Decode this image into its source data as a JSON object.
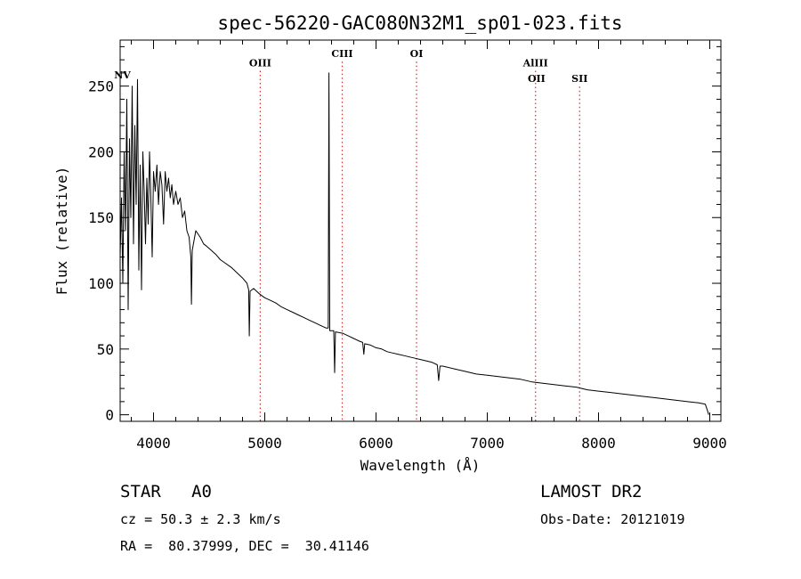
{
  "chart_data": {
    "type": "line",
    "title": "spec-56220-GAC080N32M1_sp01-023.fits",
    "xlabel": "Wavelength (Å)",
    "ylabel": "Flux (relative)",
    "xlim": [
      3700,
      9100
    ],
    "ylim": [
      -5,
      285
    ],
    "x_ticks": [
      4000,
      5000,
      6000,
      7000,
      8000,
      9000
    ],
    "y_ticks": [
      0,
      50,
      100,
      150,
      200,
      250
    ],
    "grid": false,
    "series": [
      {
        "values": [
          [
            3700,
            120
          ],
          [
            3712,
            165
          ],
          [
            3724,
            100
          ],
          [
            3736,
            200
          ],
          [
            3748,
            140
          ],
          [
            3760,
            240
          ],
          [
            3772,
            80
          ],
          [
            3784,
            210
          ],
          [
            3796,
            150
          ],
          [
            3808,
            250
          ],
          [
            3820,
            130
          ],
          [
            3832,
            220
          ],
          [
            3844,
            160
          ],
          [
            3856,
            255
          ],
          [
            3868,
            110
          ],
          [
            3880,
            190
          ],
          [
            3892,
            95
          ],
          [
            3904,
            200
          ],
          [
            3916,
            170
          ],
          [
            3928,
            130
          ],
          [
            3940,
            180
          ],
          [
            3952,
            145
          ],
          [
            3964,
            200
          ],
          [
            3976,
            165
          ],
          [
            3988,
            120
          ],
          [
            4000,
            185
          ],
          [
            4015,
            170
          ],
          [
            4030,
            190
          ],
          [
            4045,
            160
          ],
          [
            4060,
            185
          ],
          [
            4075,
            175
          ],
          [
            4090,
            145
          ],
          [
            4105,
            185
          ],
          [
            4120,
            170
          ],
          [
            4135,
            180
          ],
          [
            4150,
            165
          ],
          [
            4165,
            175
          ],
          [
            4180,
            160
          ],
          [
            4200,
            170
          ],
          [
            4220,
            160
          ],
          [
            4240,
            165
          ],
          [
            4260,
            150
          ],
          [
            4280,
            155
          ],
          [
            4300,
            140
          ],
          [
            4320,
            135
          ],
          [
            4335,
            120
          ],
          [
            4341,
            84
          ],
          [
            4348,
            125
          ],
          [
            4380,
            140
          ],
          [
            4420,
            135
          ],
          [
            4450,
            130
          ],
          [
            4480,
            128
          ],
          [
            4520,
            125
          ],
          [
            4560,
            122
          ],
          [
            4600,
            118
          ],
          [
            4650,
            115
          ],
          [
            4700,
            112
          ],
          [
            4750,
            108
          ],
          [
            4800,
            104
          ],
          [
            4840,
            100
          ],
          [
            4855,
            95
          ],
          [
            4861,
            60
          ],
          [
            4868,
            94
          ],
          [
            4900,
            96
          ],
          [
            4950,
            92
          ],
          [
            5000,
            89
          ],
          [
            5050,
            87
          ],
          [
            5100,
            85
          ],
          [
            5150,
            82
          ],
          [
            5200,
            80
          ],
          [
            5250,
            78
          ],
          [
            5300,
            76
          ],
          [
            5350,
            74
          ],
          [
            5400,
            72
          ],
          [
            5450,
            70
          ],
          [
            5500,
            68
          ],
          [
            5550,
            66
          ],
          [
            5570,
            66
          ],
          [
            5577,
            260
          ],
          [
            5584,
            64
          ],
          [
            5620,
            64
          ],
          [
            5628,
            32
          ],
          [
            5635,
            63
          ],
          [
            5700,
            62
          ],
          [
            5750,
            60
          ],
          [
            5800,
            58
          ],
          [
            5850,
            56
          ],
          [
            5880,
            55
          ],
          [
            5890,
            46
          ],
          [
            5898,
            54
          ],
          [
            5950,
            53
          ],
          [
            6000,
            51
          ],
          [
            6050,
            50
          ],
          [
            6100,
            48
          ],
          [
            6150,
            47
          ],
          [
            6200,
            46
          ],
          [
            6250,
            45
          ],
          [
            6300,
            44
          ],
          [
            6350,
            43
          ],
          [
            6400,
            42
          ],
          [
            6450,
            41
          ],
          [
            6500,
            40
          ],
          [
            6550,
            38
          ],
          [
            6563,
            26
          ],
          [
            6575,
            37
          ],
          [
            6600,
            37
          ],
          [
            6700,
            35
          ],
          [
            6800,
            33
          ],
          [
            6900,
            31
          ],
          [
            7000,
            30
          ],
          [
            7100,
            29
          ],
          [
            7200,
            28
          ],
          [
            7300,
            27
          ],
          [
            7400,
            25
          ],
          [
            7500,
            24
          ],
          [
            7600,
            23
          ],
          [
            7700,
            22
          ],
          [
            7800,
            21
          ],
          [
            7900,
            19
          ],
          [
            8000,
            18
          ],
          [
            8100,
            17
          ],
          [
            8200,
            16
          ],
          [
            8300,
            15
          ],
          [
            8400,
            14
          ],
          [
            8500,
            13
          ],
          [
            8600,
            12
          ],
          [
            8700,
            11
          ],
          [
            8800,
            10
          ],
          [
            8900,
            9
          ],
          [
            8960,
            8
          ],
          [
            8980,
            3
          ],
          [
            8990,
            0
          ]
        ]
      }
    ],
    "line_markers": [
      {
        "label": "NV",
        "wavelength": 3720,
        "color": "#000000",
        "label_y": 256,
        "show_line": false
      },
      {
        "label": "OIII",
        "wavelength": 4959,
        "color": "#d03030",
        "label_y": 265,
        "show_line": true
      },
      {
        "label": "CIII",
        "wavelength": 5696,
        "color": "#d03030",
        "label_y": 272,
        "show_line": true
      },
      {
        "label": "OI",
        "wavelength": 6364,
        "color": "#d03030",
        "label_y": 272,
        "show_line": true
      },
      {
        "label": "AlIII",
        "wavelength": 7434,
        "color": "#d03030",
        "label_y": 265,
        "show_line": true
      },
      {
        "label": "OII",
        "wavelength": 7443,
        "color": "#d03030",
        "label_y": 253,
        "show_line": false
      },
      {
        "label": "SII",
        "wavelength": 7830,
        "color": "#d03030",
        "label_y": 253,
        "show_line": true
      }
    ]
  },
  "info": {
    "object_class": "STAR",
    "subclass": "A0",
    "survey": "LAMOST DR2",
    "cz": "cz = 50.3 ± 2.3 km/s",
    "obs_date": "Obs-Date: 20121019",
    "coords": "RA =  80.37999, DEC =  30.41146"
  }
}
